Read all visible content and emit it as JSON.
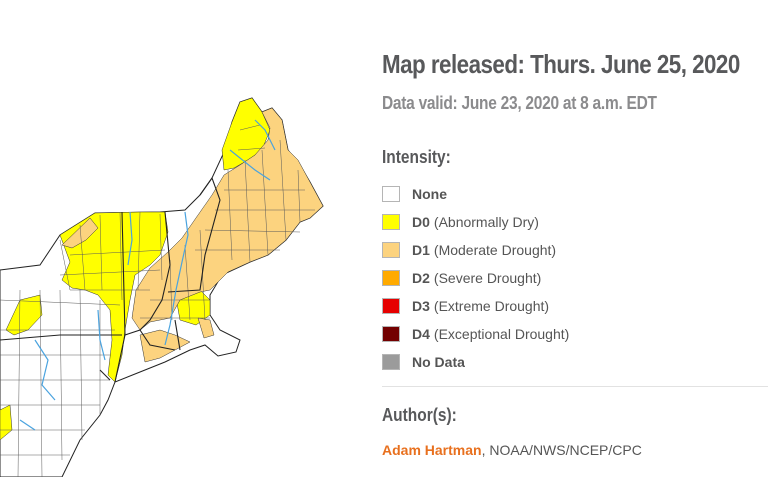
{
  "release": {
    "title": "Map released: Thurs. June 25, 2020",
    "valid": "Data valid: June 23, 2020 at 8 a.m. EDT"
  },
  "intensity": {
    "heading": "Intensity:",
    "items": [
      {
        "code": "None",
        "desc": "",
        "color": "#ffffff"
      },
      {
        "code": "D0",
        "desc": "(Abnormally Dry)",
        "color": "#ffff00"
      },
      {
        "code": "D1",
        "desc": "(Moderate Drought)",
        "color": "#fcd37f"
      },
      {
        "code": "D2",
        "desc": "(Severe Drought)",
        "color": "#ffaa00"
      },
      {
        "code": "D3",
        "desc": "(Extreme Drought)",
        "color": "#e60000"
      },
      {
        "code": "D4",
        "desc": "(Exceptional Drought)",
        "color": "#730000"
      },
      {
        "code": "No Data",
        "desc": "",
        "color": "#9b9b9b"
      }
    ]
  },
  "author": {
    "heading": "Author(s):",
    "name": "Adam Hartman",
    "affiliation": ", NOAA/NWS/NCEP/CPC"
  },
  "map": {
    "region": "Northeast",
    "colors": {
      "none": "#ffffff",
      "d0": "#ffff00",
      "d1": "#fcd37f",
      "border": "#222222",
      "county": "#555555",
      "water": "#4aa3df"
    }
  }
}
